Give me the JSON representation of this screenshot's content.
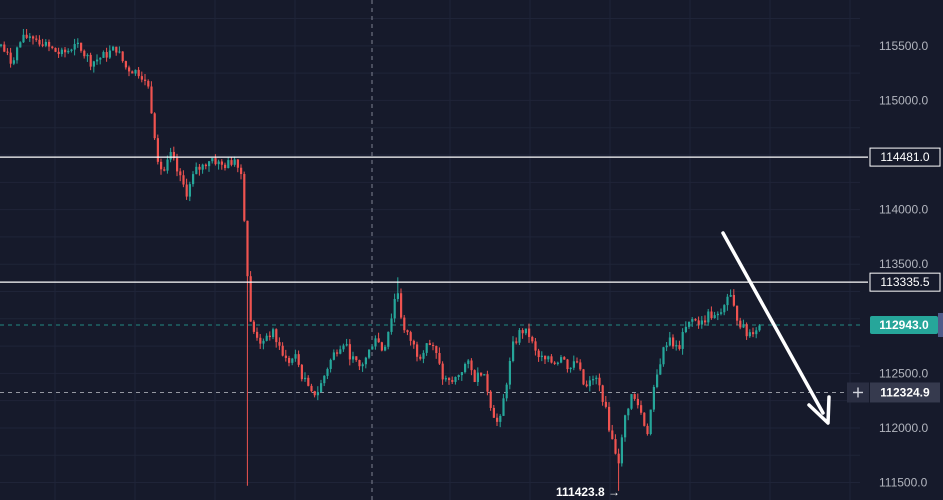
{
  "chart_data": {
    "type": "candlestick",
    "title": "",
    "xlabel": "",
    "ylabel": "",
    "ylim": [
      111340,
      115920
    ],
    "grid": true,
    "y_ticks": [
      {
        "value": 115500,
        "label": "115500.0"
      },
      {
        "value": 115000,
        "label": "115000.0"
      },
      {
        "value": 114000,
        "label": "114000.0"
      },
      {
        "value": 113500,
        "label": "113500.0"
      },
      {
        "value": 112500,
        "label": "112500.0"
      },
      {
        "value": 112000,
        "label": "112000.0"
      },
      {
        "value": 111500,
        "label": "111500.0"
      }
    ],
    "horizontal_levels": [
      {
        "value": 114481.0,
        "label": "114481.0",
        "style": "solid-white"
      },
      {
        "value": 113335.5,
        "label": "113335.5",
        "style": "solid-white"
      }
    ],
    "last_price": {
      "value": 112943.0,
      "label": "112943.0"
    },
    "crosshair": {
      "value": 112324.9,
      "label": "112324.9"
    },
    "low_marker": {
      "value": 111423.8,
      "label": "111423.8 →"
    },
    "arrow": {
      "direction": "down",
      "color": "#ffffff"
    },
    "colors": {
      "up": "#26a69a",
      "down": "#ef5350",
      "background": "#161a2b",
      "last_price_tag": "#26a69a"
    },
    "anchors": [
      [
        0,
        115500
      ],
      [
        10,
        115350
      ],
      [
        20,
        115550
      ],
      [
        30,
        115600
      ],
      [
        45,
        115500
      ],
      [
        60,
        115420
      ],
      [
        75,
        115500
      ],
      [
        90,
        115350
      ],
      [
        105,
        115420
      ],
      [
        115,
        115480
      ],
      [
        125,
        115300
      ],
      [
        140,
        115250
      ],
      [
        148,
        115100
      ],
      [
        152,
        114800
      ],
      [
        158,
        114400
      ],
      [
        163,
        114350
      ],
      [
        170,
        114500
      ],
      [
        178,
        114300
      ],
      [
        186,
        114150
      ],
      [
        194,
        114350
      ],
      [
        202,
        114400
      ],
      [
        210,
        114480
      ],
      [
        220,
        114400
      ],
      [
        228,
        114420
      ],
      [
        235,
        114480
      ],
      [
        241,
        114300
      ],
      [
        244,
        113800
      ],
      [
        247,
        113300
      ],
      [
        250,
        112900
      ],
      [
        256,
        112850
      ],
      [
        262,
        112750
      ],
      [
        270,
        112900
      ],
      [
        278,
        112750
      ],
      [
        286,
        112600
      ],
      [
        295,
        112650
      ],
      [
        302,
        112450
      ],
      [
        310,
        112300
      ],
      [
        318,
        112350
      ],
      [
        326,
        112550
      ],
      [
        334,
        112700
      ],
      [
        342,
        112800
      ],
      [
        350,
        112650
      ],
      [
        358,
        112550
      ],
      [
        366,
        112650
      ],
      [
        374,
        112850
      ],
      [
        382,
        112700
      ],
      [
        390,
        113000
      ],
      [
        396,
        113300
      ],
      [
        402,
        112900
      ],
      [
        410,
        112800
      ],
      [
        418,
        112650
      ],
      [
        426,
        112800
      ],
      [
        434,
        112700
      ],
      [
        442,
        112450
      ],
      [
        450,
        112400
      ],
      [
        458,
        112500
      ],
      [
        466,
        112600
      ],
      [
        474,
        112450
      ],
      [
        482,
        112550
      ],
      [
        490,
        112200
      ],
      [
        498,
        112000
      ],
      [
        504,
        112350
      ],
      [
        512,
        112750
      ],
      [
        520,
        112900
      ],
      [
        528,
        112850
      ],
      [
        536,
        112650
      ],
      [
        544,
        112620
      ],
      [
        552,
        112600
      ],
      [
        560,
        112650
      ],
      [
        568,
        112550
      ],
      [
        576,
        112600
      ],
      [
        584,
        112350
      ],
      [
        592,
        112450
      ],
      [
        600,
        112350
      ],
      [
        606,
        112100
      ],
      [
        612,
        111850
      ],
      [
        618,
        111700
      ],
      [
        624,
        112100
      ],
      [
        630,
        112300
      ],
      [
        638,
        112200
      ],
      [
        646,
        111950
      ],
      [
        652,
        112300
      ],
      [
        660,
        112650
      ],
      [
        668,
        112850
      ],
      [
        676,
        112700
      ],
      [
        684,
        112900
      ],
      [
        692,
        113000
      ],
      [
        700,
        112950
      ],
      [
        708,
        113050
      ],
      [
        716,
        113000
      ],
      [
        722,
        113100
      ],
      [
        728,
        113250
      ],
      [
        734,
        113050
      ],
      [
        740,
        112950
      ],
      [
        746,
        112850
      ],
      [
        752,
        112900
      ],
      [
        760,
        112943
      ]
    ]
  }
}
